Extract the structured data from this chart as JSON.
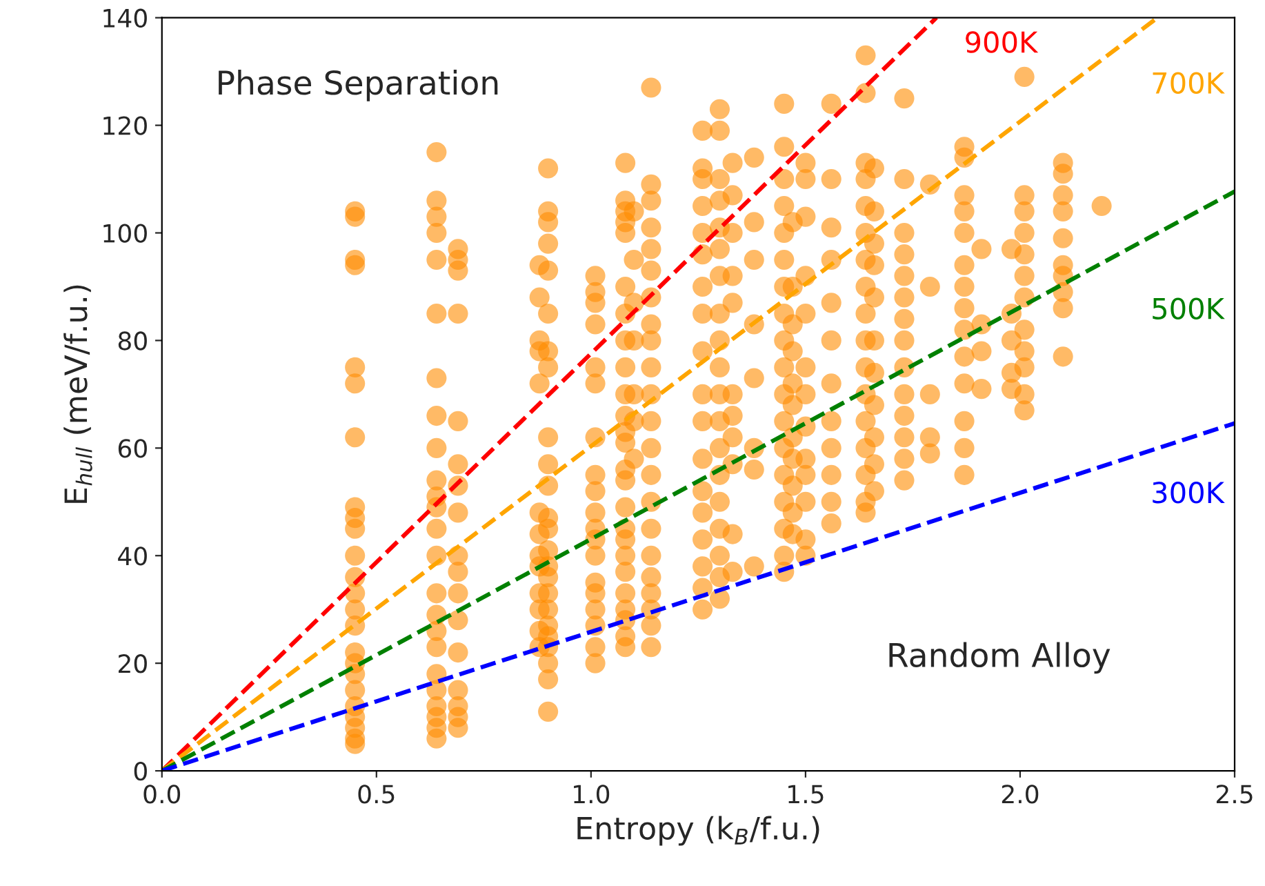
{
  "chart_data": {
    "type": "scatter",
    "xlabel": "Entropy (k$_{B}$/f.u.)",
    "ylabel": "E$_{hull}$ (meV/f.u.)",
    "annotations": [
      "Phase Separation",
      "Random Alloy"
    ],
    "xlim": [
      0,
      2.5
    ],
    "ylim": [
      0,
      140
    ],
    "xticks": [
      {
        "value": 0,
        "label": "0.0"
      },
      {
        "value": 0.5,
        "label": "0.5"
      },
      {
        "value": 1,
        "label": "1.0"
      },
      {
        "value": 1.5,
        "label": "1.5"
      },
      {
        "value": 2,
        "label": "2.0"
      },
      {
        "value": 2.5,
        "label": "2.5"
      }
    ],
    "yticks": [
      0,
      20,
      40,
      60,
      80,
      100,
      120,
      140
    ],
    "series": [
      {
        "color": "#ff8c00",
        "marker": "circle",
        "x": [
          0.45,
          0.45,
          0.45,
          0.45,
          0.45,
          0.45,
          0.45,
          0.45,
          0.45,
          0.45,
          0.45,
          0.45,
          0.45,
          0.45,
          0.45,
          0.45,
          0.45,
          0.45,
          0.45,
          0.45,
          0.45,
          0.45,
          0.45,
          0.45,
          0.64,
          0.64,
          0.64,
          0.64,
          0.64,
          0.64,
          0.64,
          0.64,
          0.64,
          0.64,
          0.64,
          0.64,
          0.64,
          0.64,
          0.64,
          0.64,
          0.64,
          0.64,
          0.64,
          0.64,
          0.64,
          0.64,
          0.64,
          0.64,
          0.69,
          0.69,
          0.69,
          0.69,
          0.69,
          0.69,
          0.69,
          0.69,
          0.69,
          0.69,
          0.69,
          0.69,
          0.69,
          0.69,
          0.69,
          0.69,
          0.69,
          0.88,
          0.88,
          0.88,
          0.88,
          0.88,
          0.88,
          0.88,
          0.88,
          0.88,
          0.88,
          0.88,
          0.88,
          0.88,
          0.9,
          0.9,
          0.9,
          0.9,
          0.9,
          0.9,
          0.9,
          0.9,
          0.9,
          0.9,
          0.9,
          0.9,
          0.9,
          0.9,
          0.9,
          0.9,
          0.9,
          0.9,
          0.9,
          0.9,
          0.9,
          0.9,
          0.9,
          0.9,
          1.01,
          1.01,
          1.01,
          1.01,
          1.01,
          1.01,
          1.01,
          1.01,
          1.01,
          1.01,
          1.01,
          1.01,
          1.01,
          1.01,
          1.01,
          1.01,
          1.01,
          1.01,
          1.01,
          1.08,
          1.08,
          1.08,
          1.08,
          1.08,
          1.08,
          1.08,
          1.08,
          1.08,
          1.08,
          1.08,
          1.08,
          1.08,
          1.08,
          1.08,
          1.08,
          1.08,
          1.08,
          1.08,
          1.08,
          1.08,
          1.08,
          1.08,
          1.08,
          1.08,
          1.1,
          1.1,
          1.1,
          1.1,
          1.1,
          1.1,
          1.1,
          1.14,
          1.14,
          1.14,
          1.14,
          1.14,
          1.14,
          1.14,
          1.14,
          1.14,
          1.14,
          1.14,
          1.14,
          1.14,
          1.14,
          1.14,
          1.14,
          1.14,
          1.14,
          1.14,
          1.14,
          1.14,
          1.14,
          1.26,
          1.26,
          1.26,
          1.26,
          1.26,
          1.26,
          1.26,
          1.26,
          1.26,
          1.26,
          1.26,
          1.26,
          1.26,
          1.26,
          1.26,
          1.26,
          1.26,
          1.26,
          1.3,
          1.3,
          1.3,
          1.3,
          1.3,
          1.3,
          1.3,
          1.3,
          1.3,
          1.3,
          1.3,
          1.3,
          1.3,
          1.3,
          1.3,
          1.3,
          1.3,
          1.3,
          1.3,
          1.33,
          1.33,
          1.33,
          1.33,
          1.33,
          1.33,
          1.33,
          1.33,
          1.33,
          1.33,
          1.33,
          1.38,
          1.38,
          1.38,
          1.38,
          1.38,
          1.38,
          1.38,
          1.38,
          1.45,
          1.45,
          1.45,
          1.45,
          1.45,
          1.45,
          1.45,
          1.45,
          1.45,
          1.45,
          1.45,
          1.45,
          1.45,
          1.45,
          1.45,
          1.45,
          1.45,
          1.45,
          1.47,
          1.47,
          1.47,
          1.47,
          1.47,
          1.47,
          1.47,
          1.47,
          1.47,
          1.47,
          1.47,
          1.5,
          1.5,
          1.5,
          1.5,
          1.5,
          1.5,
          1.5,
          1.5,
          1.5,
          1.5,
          1.5,
          1.5,
          1.5,
          1.56,
          1.56,
          1.56,
          1.56,
          1.56,
          1.56,
          1.56,
          1.56,
          1.56,
          1.56,
          1.56,
          1.56,
          1.64,
          1.64,
          1.64,
          1.64,
          1.64,
          1.64,
          1.64,
          1.64,
          1.64,
          1.64,
          1.64,
          1.64,
          1.64,
          1.64,
          1.64,
          1.64,
          1.64,
          1.66,
          1.66,
          1.66,
          1.66,
          1.66,
          1.66,
          1.66,
          1.66,
          1.66,
          1.66,
          1.66,
          1.73,
          1.73,
          1.73,
          1.73,
          1.73,
          1.73,
          1.73,
          1.73,
          1.73,
          1.73,
          1.73,
          1.73,
          1.73,
          1.73,
          1.79,
          1.79,
          1.79,
          1.79,
          1.79,
          1.87,
          1.87,
          1.87,
          1.87,
          1.87,
          1.87,
          1.87,
          1.87,
          1.87,
          1.87,
          1.87,
          1.87,
          1.87,
          1.87,
          1.91,
          1.91,
          1.91,
          1.91,
          1.98,
          1.98,
          1.98,
          1.98,
          1.98,
          2.01,
          2.01,
          2.01,
          2.01,
          2.01,
          2.01,
          2.01,
          2.01,
          2.01,
          2.01,
          2.01,
          2.01,
          2.1,
          2.1,
          2.1,
          2.1,
          2.1,
          2.1,
          2.1,
          2.1,
          2.1,
          2.1,
          2.19
        ],
        "values": [
          104,
          103,
          94,
          95,
          75,
          72,
          62,
          49,
          47,
          45,
          40,
          36,
          33,
          30,
          27,
          22,
          20,
          18,
          15,
          12,
          10,
          8,
          6,
          5,
          115,
          106,
          103,
          100,
          95,
          85,
          73,
          66,
          60,
          54,
          51,
          49,
          45,
          40,
          33,
          29,
          26,
          23,
          18,
          15,
          12,
          10,
          8,
          6,
          97,
          95,
          93,
          85,
          65,
          57,
          53,
          48,
          40,
          37,
          33,
          28,
          22,
          15,
          12,
          10,
          8,
          94,
          88,
          80,
          78,
          72,
          48,
          44,
          40,
          38,
          33,
          30,
          26,
          23,
          112,
          104,
          102,
          98,
          93,
          85,
          78,
          75,
          62,
          57,
          53,
          47,
          45,
          41,
          38,
          36,
          33,
          30,
          27,
          25,
          23,
          20,
          17,
          11,
          92,
          89,
          87,
          83,
          75,
          72,
          62,
          55,
          52,
          48,
          45,
          43,
          40,
          35,
          33,
          30,
          27,
          23,
          20,
          113,
          106,
          104,
          102,
          100,
          90,
          85,
          80,
          75,
          70,
          66,
          63,
          61,
          56,
          54,
          49,
          45,
          43,
          40,
          37,
          33,
          30,
          28,
          25,
          23,
          104,
          95,
          87,
          80,
          70,
          65,
          58,
          127,
          109,
          106,
          101,
          97,
          93,
          88,
          83,
          80,
          75,
          70,
          65,
          60,
          55,
          50,
          45,
          40,
          36,
          33,
          30,
          27,
          23,
          119,
          112,
          110,
          105,
          100,
          96,
          90,
          85,
          78,
          70,
          65,
          58,
          52,
          48,
          43,
          38,
          34,
          30,
          123,
          119,
          110,
          106,
          101,
          97,
          92,
          85,
          80,
          75,
          70,
          65,
          60,
          55,
          50,
          45,
          40,
          36,
          32,
          113,
          107,
          100,
          92,
          87,
          70,
          66,
          62,
          57,
          44,
          37,
          114,
          102,
          95,
          83,
          73,
          60,
          56,
          38,
          124,
          116,
          110,
          105,
          100,
          95,
          90,
          85,
          80,
          75,
          70,
          65,
          60,
          55,
          50,
          45,
          40,
          37,
          102,
          90,
          83,
          78,
          72,
          68,
          62,
          58,
          53,
          48,
          44,
          113,
          110,
          103,
          92,
          85,
          75,
          70,
          64,
          58,
          55,
          50,
          43,
          40,
          124,
          110,
          101,
          95,
          87,
          80,
          72,
          65,
          60,
          55,
          50,
          46,
          133,
          126,
          113,
          110,
          105,
          100,
          95,
          90,
          85,
          80,
          75,
          70,
          65,
          60,
          55,
          50,
          48,
          112,
          104,
          98,
          94,
          88,
          80,
          74,
          68,
          62,
          57,
          52,
          125,
          110,
          100,
          96,
          92,
          88,
          84,
          80,
          75,
          70,
          66,
          62,
          58,
          54,
          109,
          90,
          70,
          62,
          59,
          116,
          114,
          107,
          104,
          100,
          94,
          90,
          86,
          82,
          77,
          72,
          65,
          60,
          55,
          97,
          83,
          78,
          71,
          97,
          85,
          80,
          74,
          71,
          129,
          107,
          104,
          100,
          96,
          92,
          88,
          82,
          78,
          75,
          70,
          67,
          113,
          111,
          107,
          104,
          99,
          94,
          92,
          89,
          86,
          77,
          105
        ]
      },
      {
        "type": "line",
        "name": "900K",
        "color": "#ff0000",
        "line_style": "dashed",
        "x": [
          0,
          1.805
        ],
        "values": [
          0,
          140
        ]
      },
      {
        "type": "line",
        "name": "700K",
        "color": "#ffa500",
        "line_style": "dashed",
        "x": [
          0,
          2.32
        ],
        "values": [
          0,
          140
        ]
      },
      {
        "type": "line",
        "name": "500K",
        "color": "#008000",
        "line_style": "dashed",
        "x": [
          0,
          2.5
        ],
        "values": [
          0,
          107.7
        ]
      },
      {
        "type": "line",
        "name": "300K",
        "color": "#0000ff",
        "line_style": "dashed",
        "x": [
          0,
          2.5
        ],
        "values": [
          0,
          64.6
        ]
      }
    ]
  }
}
